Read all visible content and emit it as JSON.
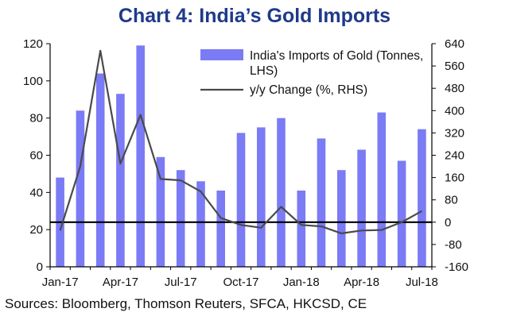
{
  "chart_data": {
    "type": "bar+line",
    "title": "Chart 4: India’s Gold Imports",
    "categories": [
      "Jan-17",
      "Feb-17",
      "Mar-17",
      "Apr-17",
      "May-17",
      "Jun-17",
      "Jul-17",
      "Aug-17",
      "Sep-17",
      "Oct-17",
      "Nov-17",
      "Dec-17",
      "Jan-18",
      "Feb-18",
      "Mar-18",
      "Apr-18",
      "May-18",
      "Jun-18",
      "Jul-18"
    ],
    "x_tick_labels": [
      "Jan-17",
      "Apr-17",
      "Jul-17",
      "Oct-17",
      "Jan-18",
      "Apr-18",
      "Jul-18"
    ],
    "series": [
      {
        "name": "India's Imports of Gold (Tonnes, LHS)",
        "legend_lines": [
          "India's Imports of Gold (Tonnes,",
          "LHS)"
        ],
        "type": "bar",
        "axis": "left",
        "color": "#7b7bf5",
        "values": [
          48,
          84,
          104,
          93,
          119,
          59,
          52,
          46,
          41,
          72,
          75,
          80,
          41,
          69,
          52,
          63,
          83,
          57,
          74
        ]
      },
      {
        "name": "y/y Change (%, RHS)",
        "type": "line",
        "axis": "right",
        "color": "#4a4a4a",
        "values": [
          -30,
          200,
          615,
          210,
          385,
          155,
          150,
          110,
          15,
          -10,
          -20,
          55,
          -10,
          -15,
          -40,
          -30,
          -28,
          0,
          40
        ]
      }
    ],
    "y_left": {
      "range": [
        0,
        120
      ],
      "ticks": [
        "0",
        "20",
        "40",
        "60",
        "80",
        "100",
        "120"
      ]
    },
    "y_right": {
      "range": [
        -160,
        640
      ],
      "ticks": [
        "-160",
        "-80",
        "0",
        "80",
        "160",
        "240",
        "320",
        "400",
        "480",
        "560",
        "640"
      ]
    },
    "zero_line_right": 0
  },
  "source_text": "Sources: Bloomberg, Thomson Reuters, SFCA, HKCSD, CE",
  "colors": {
    "title": "#1f3a8a",
    "bar": "#7b7bf5",
    "line": "#4a4a4a",
    "axis": "#000000"
  }
}
